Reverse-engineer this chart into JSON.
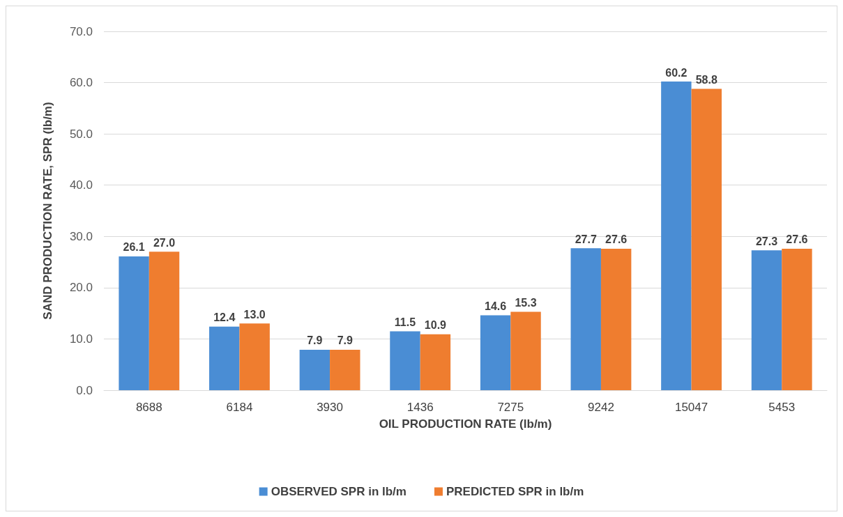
{
  "chart_data": {
    "type": "bar",
    "xlabel": "OIL PRODUCTION RATE (lb/m)",
    "ylabel": "SAND PRODUCTION RATE, SPR (lb/m)",
    "categories": [
      "8688",
      "6184",
      "3930",
      "1436",
      "7275",
      "9242",
      "15047",
      "5453"
    ],
    "series": [
      {
        "name": "OBSERVED SPR in lb/m",
        "color": "#4a8dd4",
        "values": [
          26.1,
          12.4,
          7.9,
          11.5,
          14.6,
          27.7,
          60.2,
          27.3
        ],
        "value_labels": [
          "26.1",
          "12.4",
          "7.9",
          "11.5",
          "14.6",
          "27.7",
          "60.2",
          "27.3"
        ]
      },
      {
        "name": "PREDICTED SPR in lb/m",
        "color": "#ef7d2f",
        "values": [
          27.0,
          13.0,
          7.9,
          10.9,
          15.3,
          27.6,
          58.8,
          27.6
        ],
        "value_labels": [
          "27.0",
          "13.0",
          "7.9",
          "10.9",
          "15.3",
          "27.6",
          "58.8",
          "27.6"
        ]
      }
    ],
    "ylim": [
      0,
      70
    ],
    "yticks": [
      {
        "value": 0,
        "label": "0.0"
      },
      {
        "value": 10,
        "label": "10.0"
      },
      {
        "value": 20,
        "label": "20.0"
      },
      {
        "value": 30,
        "label": "30.0"
      },
      {
        "value": 40,
        "label": "40.0"
      },
      {
        "value": 50,
        "label": "50.0"
      },
      {
        "value": 60,
        "label": "60.0"
      },
      {
        "value": 70,
        "label": "70.0"
      }
    ],
    "grid": "y",
    "legend": "bottom"
  }
}
